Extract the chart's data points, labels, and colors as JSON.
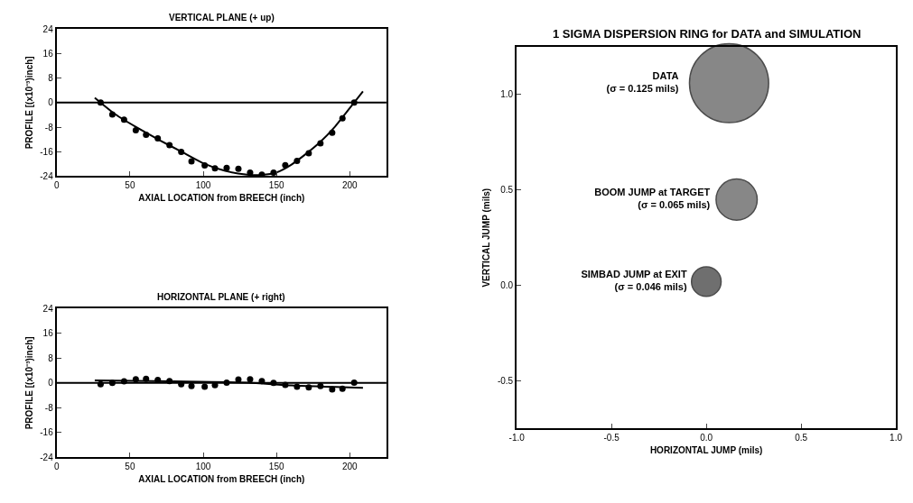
{
  "chart_data": [
    {
      "type": "scatter",
      "title": "VERTICAL PLANE (+ up)",
      "xlabel": "AXIAL LOCATION from BREECH (inch)",
      "ylabel": "PROFILE [(x10⁻³)inch]",
      "xlim": [
        0,
        225
      ],
      "xticks": [
        0,
        50,
        100,
        150,
        200
      ],
      "ylim": [
        -24,
        24
      ],
      "yticks": [
        -24,
        -16,
        -8,
        0,
        8,
        16,
        24
      ],
      "ref_lines": [
        {
          "axis": "y",
          "value": 0,
          "color": "#000000"
        }
      ],
      "series": [
        {
          "marker": "circle",
          "color": "#000000",
          "x": [
            30,
            38,
            46,
            54,
            61,
            69,
            77,
            85,
            92,
            101,
            108,
            116,
            124,
            132,
            140,
            148,
            156,
            164,
            172,
            180,
            188,
            195,
            203
          ],
          "values": [
            0,
            -3.9,
            -5.6,
            -9,
            -10.5,
            -11.7,
            -13.9,
            -16.1,
            -19.2,
            -20.5,
            -21.5,
            -21.3,
            -21.6,
            -22.9,
            -23.5,
            -22.9,
            -20.4,
            -19,
            -16.5,
            -13.3,
            -9.8,
            -5.1,
            0
          ]
        },
        {
          "type": "line",
          "color": "#000000",
          "line_style": "solid",
          "x": [
            26,
            40,
            55,
            70,
            85,
            100,
            115,
            130,
            140,
            150,
            160,
            170,
            180,
            190,
            200,
            209
          ],
          "values": [
            1.6,
            -3.8,
            -8.2,
            -12.2,
            -16.0,
            -19.8,
            -22.3,
            -23.5,
            -23.6,
            -22.8,
            -20.3,
            -16.8,
            -12.8,
            -7.8,
            -1.8,
            3.7
          ]
        }
      ]
    },
    {
      "type": "scatter",
      "title": "HORIZONTAL PLANE (+ right)",
      "xlabel": "AXIAL LOCATION from BREECH (inch)",
      "ylabel": "PROFILE [(x10⁻³)inch]",
      "xlim": [
        0,
        225
      ],
      "xticks": [
        0,
        50,
        100,
        150,
        200
      ],
      "ylim": [
        -24,
        24
      ],
      "yticks": [
        -24,
        -16,
        -8,
        0,
        8,
        16,
        24
      ],
      "ref_lines": [
        {
          "axis": "y",
          "value": 0,
          "color": "#000000"
        }
      ],
      "series": [
        {
          "marker": "circle",
          "color": "#000000",
          "x": [
            30,
            38,
            46,
            54,
            61,
            69,
            77,
            85,
            92,
            101,
            108,
            116,
            124,
            132,
            140,
            148,
            156,
            164,
            172,
            180,
            188,
            195,
            203
          ],
          "values": [
            -0.4,
            0,
            0.5,
            1.2,
            1.3,
            1.0,
            0.6,
            -0.4,
            -1.0,
            -1.2,
            -0.7,
            0.1,
            1.1,
            1.2,
            0.6,
            0,
            -0.6,
            -1.2,
            -1.4,
            -1.0,
            -2.1,
            -1.9,
            0.1
          ]
        },
        {
          "type": "line",
          "color": "#000000",
          "line_style": "solid",
          "x": [
            26,
            80,
            130,
            160,
            209
          ],
          "values": [
            0.8,
            0.5,
            0.1,
            -0.8,
            -1.6
          ]
        }
      ]
    },
    {
      "type": "bubble",
      "title": "1 SIGMA DISPERSION RING for DATA and SIMULATION",
      "xlabel": "HORIZONTAL JUMP (mils)",
      "ylabel": "VERTICAL JUMP (mils)",
      "xlim": [
        -1,
        1
      ],
      "xticks": [
        {
          "value": -1,
          "label": "-1.0"
        },
        {
          "value": -0.5,
          "label": "-0.5"
        },
        {
          "value": 0,
          "label": "0.0"
        },
        {
          "value": 0.5,
          "label": "0.5"
        },
        {
          "value": 1,
          "label": "1.0"
        }
      ],
      "ylim": [
        -0.75,
        1.25
      ],
      "yticks": [
        {
          "value": -0.5,
          "label": "-0.5"
        },
        {
          "value": 0,
          "label": "0.0"
        },
        {
          "value": 0.5,
          "label": "0.5"
        },
        {
          "value": 1,
          "label": "1.0"
        }
      ],
      "series": [
        {
          "name": "DATA\n(σ = 0.125 mils)",
          "color": "#555555",
          "x": [
            0.12
          ],
          "values": [
            1.06
          ],
          "sizes": [
            1
          ]
        },
        {
          "name": "BOOM JUMP at TARGET\n(σ = 0.065 mils)",
          "color": "#555555",
          "x": [
            0.16
          ],
          "values": [
            0.45
          ],
          "sizes": [
            0.27
          ]
        },
        {
          "name": "SIMBAD JUMP at EXIT\n(σ = 0.046 mils)",
          "color": "#333333",
          "x": [
            0.0
          ],
          "values": [
            0.02
          ],
          "sizes": [
            0.14
          ]
        }
      ]
    }
  ]
}
